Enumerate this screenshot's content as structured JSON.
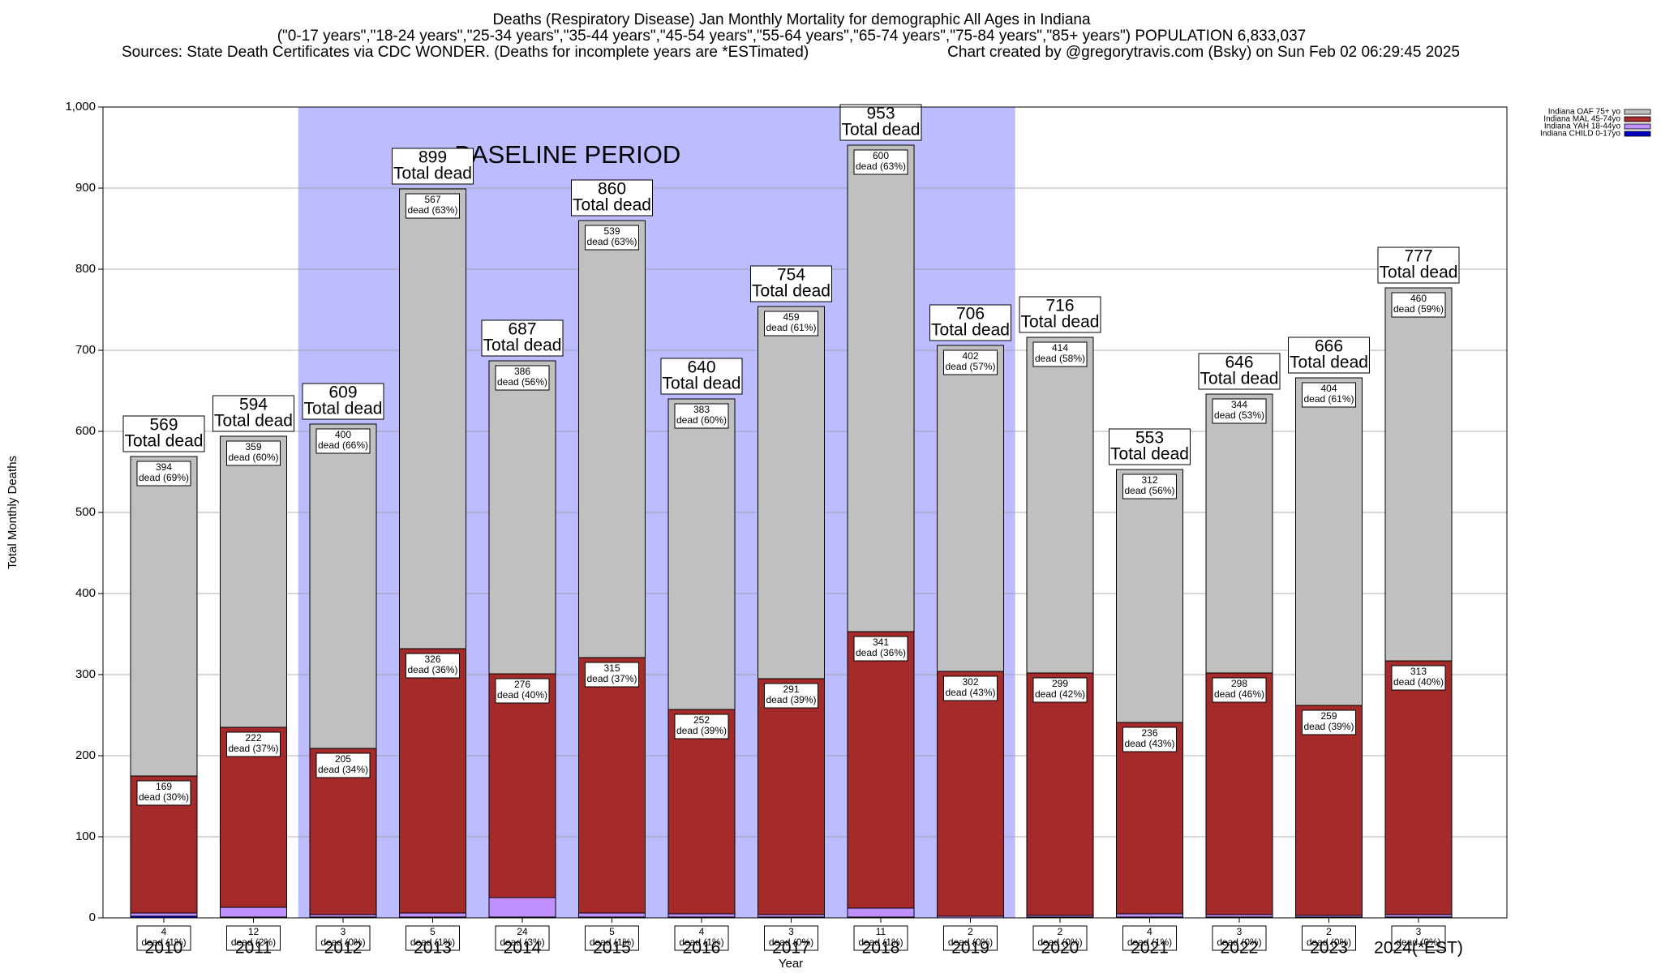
{
  "chart_data": {
    "type": "stacked-bar",
    "title": "Deaths (Respiratory Disease) Jan Monthly Mortality for demographic All Ages in Indiana",
    "subtitle": "(\"0-17 years\",\"18-24 years\",\"25-34 years\",\"35-44 years\",\"45-54 years\",\"55-64 years\",\"65-74 years\",\"75-84 years\",\"85+ years\") POPULATION 6,833,037",
    "sources": "Sources: State Death Certificates via CDC WONDER. (Deaths for incomplete years are *ESTimated)",
    "credit": "Chart created by @gregorytravis.com (Bsky) on Sun Feb 02 06:29:45 2025",
    "x_label": "Year",
    "y_label": "Total Monthly Deaths",
    "categories": [
      "2010",
      "2011",
      "2012",
      "2013",
      "2014",
      "2015",
      "2016",
      "2017",
      "2018",
      "2019",
      "2020",
      "2021",
      "2022",
      "2023",
      "2024(*EST)"
    ],
    "series": [
      {
        "name": "Indiana OAF 75+ yo",
        "color": "#c0c0c0",
        "values": [
          394,
          359,
          400,
          567,
          386,
          539,
          383,
          459,
          600,
          402,
          414,
          312,
          344,
          404,
          460
        ],
        "labels": [
          "dead (69%)",
          "dead (60%)",
          "dead (66%)",
          "dead (63%)",
          "dead (56%)",
          "dead (63%)",
          "dead (60%)",
          "dead (61%)",
          "dead (63%)",
          "dead (57%)",
          "dead (58%)",
          "dead (56%)",
          "dead (53%)",
          "dead (61%)",
          "dead (59%)"
        ]
      },
      {
        "name": "Indiana MAL 45-74yo",
        "color": "#a52a2a",
        "values": [
          169,
          222,
          205,
          326,
          276,
          315,
          252,
          291,
          341,
          302,
          299,
          236,
          298,
          259,
          313
        ],
        "labels": [
          "dead (30%)",
          "dead (37%)",
          "dead (34%)",
          "dead (36%)",
          "dead (40%)",
          "dead (37%)",
          "dead (39%)",
          "dead (39%)",
          "dead (36%)",
          "dead (43%)",
          "dead (42%)",
          "dead (43%)",
          "dead (46%)",
          "dead (39%)",
          "dead (40%)"
        ]
      },
      {
        "name": "Indiana YAH 18-44yo",
        "color": "#c090ff",
        "values": [
          4,
          12,
          3,
          5,
          24,
          5,
          4,
          3,
          11,
          2,
          2,
          4,
          3,
          2,
          3
        ],
        "labels": [
          "dead (1%)",
          "dead (2%)",
          "dead (0%)",
          "dead (1%)",
          "dead (3%)",
          "dead (1%)",
          "dead (1%)",
          "dead (0%)",
          "dead (1%)",
          "dead (0%)",
          "dead (0%)",
          "dead (1%)",
          "dead (0%)",
          "dead (0%)",
          "dead (0%)"
        ]
      },
      {
        "name": "Indiana CHILD 0-17yo",
        "color": "#0000c0",
        "values": [
          2,
          1,
          1,
          1,
          1,
          1,
          1,
          1,
          1,
          0,
          1,
          1,
          1,
          1,
          1
        ]
      }
    ],
    "totals": [
      569,
      594,
      609,
      899,
      687,
      860,
      640,
      754,
      953,
      706,
      716,
      553,
      646,
      666,
      777
    ],
    "total_label": "Total dead",
    "baseline": {
      "label": "BASELINE PERIOD",
      "from": 2,
      "to": 9,
      "color": "#bcbcff"
    },
    "ylim": [
      0,
      1000
    ],
    "yticks": [
      0,
      100,
      200,
      300,
      400,
      500,
      600,
      700,
      800,
      900,
      {
        "value": 1000,
        "label": "1,000"
      }
    ],
    "grid": true
  }
}
